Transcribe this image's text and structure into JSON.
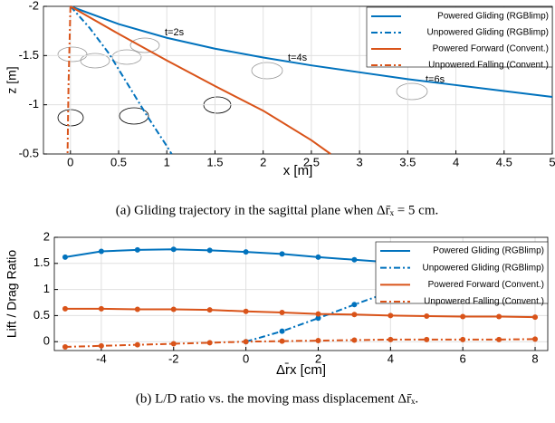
{
  "chart_data": [
    {
      "type": "line",
      "y_inverted": true,
      "grid": true,
      "legend": "upper right",
      "xlabel": "x [m]",
      "ylabel": "z [m]",
      "caption": "(a) Gliding trajectory in the sagittal plane when Δr̄ₓ = 5 cm.",
      "annotations": [
        "t=2s",
        "t=4s",
        "t=6s"
      ],
      "xlim": [
        -0.28,
        5
      ],
      "ylim": [
        -2,
        -0.5
      ],
      "xticks": [
        0,
        0.5,
        1,
        1.5,
        2,
        2.5,
        3,
        3.5,
        4,
        4.5,
        5
      ],
      "yticks": [
        -2,
        -1.5,
        -1,
        -0.5
      ],
      "series": [
        {
          "name": "Powered Gliding (RGBlimp)",
          "color": "#0072bd",
          "style": "solid",
          "x": [
            0,
            0.5,
            1,
            1.5,
            2,
            2.5,
            3,
            3.5,
            4,
            4.5,
            5
          ],
          "values": [
            -2,
            -1.82,
            -1.68,
            -1.57,
            -1.48,
            -1.4,
            -1.33,
            -1.26,
            -1.2,
            -1.14,
            -1.08
          ]
        },
        {
          "name": "Unpowered Gliding (RGBlimp)",
          "color": "#0072bd",
          "style": "dashdot",
          "x": [
            0,
            0.2,
            0.4,
            0.6,
            0.8,
            1.0,
            1.05
          ],
          "values": [
            -2,
            -1.78,
            -1.52,
            -1.2,
            -0.88,
            -0.58,
            -0.5
          ]
        },
        {
          "name": "Powered Forward (Convent.)",
          "color": "#d95319",
          "style": "solid",
          "x": [
            0,
            0.5,
            1,
            1.5,
            2,
            2.5,
            2.7
          ],
          "values": [
            -2,
            -1.72,
            -1.45,
            -1.19,
            -0.94,
            -0.64,
            -0.5
          ]
        },
        {
          "name": "Unpowered Falling (Convent.)",
          "color": "#d95319",
          "style": "dashdot",
          "x": [
            0,
            -0.02,
            -0.03
          ],
          "values": [
            -2,
            -1.2,
            -0.5
          ]
        }
      ]
    },
    {
      "type": "line",
      "grid": true,
      "legend": "upper right",
      "markers": true,
      "xlabel": "Δr̄x [cm]",
      "ylabel": "Lift / Drag  Ratio",
      "caption": "(b) L/D ratio vs. the moving mass displacement Δr̄ₓ.",
      "xlim": [
        -5.3,
        8.35
      ],
      "ylim": [
        -0.17,
        2
      ],
      "xticks": [
        -4,
        -2,
        0,
        2,
        4,
        6,
        8
      ],
      "yticks": [
        0,
        0.5,
        1,
        1.5,
        2
      ],
      "x": [
        -5,
        -4,
        -3,
        -2,
        -1,
        0,
        1,
        2,
        3,
        4,
        5,
        6,
        7,
        8
      ],
      "series": [
        {
          "name": "Powered Gliding (RGBlimp)",
          "color": "#0072bd",
          "style": "solid",
          "values": [
            1.62,
            1.73,
            1.76,
            1.77,
            1.75,
            1.72,
            1.68,
            1.62,
            1.57,
            1.52,
            1.45,
            1.38,
            1.3,
            1.22
          ]
        },
        {
          "name": "Unpowered Gliding (RGBlimp)",
          "color": "#0072bd",
          "style": "dashdot",
          "values": [
            null,
            null,
            null,
            null,
            null,
            0,
            0.2,
            0.45,
            0.71,
            0.96,
            1.15,
            1.37,
            1.53,
            1.66
          ]
        },
        {
          "name": "Powered Forward (Convent.)",
          "color": "#d95319",
          "style": "solid",
          "values": [
            0.63,
            0.63,
            0.62,
            0.62,
            0.61,
            0.58,
            0.56,
            0.53,
            0.52,
            0.5,
            0.49,
            0.48,
            0.48,
            0.47
          ]
        },
        {
          "name": "Unpowered Falling (Convent.)",
          "color": "#d95319",
          "style": "dashdot",
          "values": [
            -0.1,
            -0.08,
            -0.06,
            -0.04,
            -0.02,
            0,
            0.01,
            0.02,
            0.03,
            0.04,
            0.04,
            0.04,
            0.04,
            0.05
          ]
        }
      ]
    }
  ]
}
